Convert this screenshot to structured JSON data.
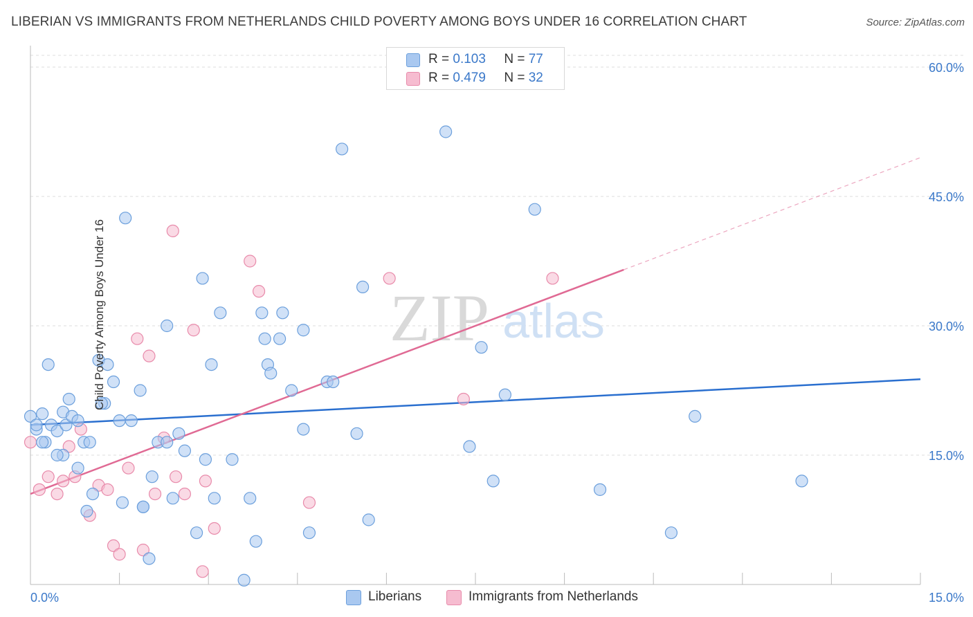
{
  "title": "LIBERIAN VS IMMIGRANTS FROM NETHERLANDS CHILD POVERTY AMONG BOYS UNDER 16 CORRELATION CHART",
  "source": "Source: ZipAtlas.com",
  "watermark": {
    "zip": "ZIP",
    "atlas": "atlas"
  },
  "colors": {
    "blue_fill": "#a9c8f0",
    "blue_stroke": "#6b9fdc",
    "blue_line": "#2a6fcf",
    "pink_fill": "#f6bcd0",
    "pink_stroke": "#e88aaa",
    "pink_line": "#e06a94",
    "axis_label": "#3a78c9",
    "grid": "#dddddd"
  },
  "legend": {
    "rows": [
      {
        "r_label": "R =",
        "r_value": "0.103",
        "n_label": "N =",
        "n_value": "77"
      },
      {
        "r_label": "R =",
        "r_value": "0.479",
        "n_label": "N =",
        "n_value": "32"
      }
    ]
  },
  "bottom_legend": [
    "Liberians",
    "Immigrants from Netherlands"
  ],
  "chart_data": {
    "type": "scatter",
    "title": "LIBERIAN VS IMMIGRANTS FROM NETHERLANDS CHILD POVERTY AMONG BOYS UNDER 16 CORRELATION CHART",
    "xlabel": "",
    "ylabel": "Child Poverty Among Boys Under 16",
    "xlim": [
      0,
      15
    ],
    "ylim": [
      0,
      60
    ],
    "x_tick_labels": [
      "0.0%",
      "15.0%"
    ],
    "y_ticks": [
      15,
      30,
      45,
      60
    ],
    "y_tick_labels": [
      "15.0%",
      "30.0%",
      "45.0%",
      "60.0%"
    ],
    "grid": true,
    "legend_position": "top-center",
    "series": [
      {
        "name": "Liberians",
        "color": "#6b9fdc",
        "trend": {
          "x": [
            0,
            15
          ],
          "y": [
            18.5,
            23.8
          ],
          "solid_to": 15
        },
        "points": [
          [
            0.0,
            19.5
          ],
          [
            0.1,
            18.0
          ],
          [
            0.2,
            19.8
          ],
          [
            0.3,
            25.5
          ],
          [
            0.35,
            18.5
          ],
          [
            0.45,
            17.8
          ],
          [
            0.55,
            20.0
          ],
          [
            0.6,
            18.5
          ],
          [
            0.65,
            21.5
          ],
          [
            0.7,
            19.5
          ],
          [
            0.8,
            19.0
          ],
          [
            0.9,
            16.5
          ],
          [
            1.0,
            16.5
          ],
          [
            1.05,
            10.5
          ],
          [
            0.95,
            8.5
          ],
          [
            0.8,
            13.5
          ],
          [
            0.55,
            15.0
          ],
          [
            0.45,
            15.0
          ],
          [
            0.25,
            16.5
          ],
          [
            0.1,
            18.5
          ],
          [
            1.15,
            26.0
          ],
          [
            1.25,
            21.0
          ],
          [
            1.3,
            25.5
          ],
          [
            1.4,
            23.5
          ],
          [
            1.5,
            19.0
          ],
          [
            1.55,
            9.5
          ],
          [
            1.6,
            42.5
          ],
          [
            1.7,
            19.0
          ],
          [
            1.85,
            22.5
          ],
          [
            1.9,
            9.0
          ],
          [
            2.0,
            3.0
          ],
          [
            2.05,
            12.5
          ],
          [
            2.15,
            16.5
          ],
          [
            2.3,
            16.5
          ],
          [
            2.3,
            30.0
          ],
          [
            2.4,
            10.0
          ],
          [
            2.5,
            17.5
          ],
          [
            2.6,
            15.5
          ],
          [
            2.8,
            6.0
          ],
          [
            2.9,
            35.5
          ],
          [
            2.95,
            14.5
          ],
          [
            3.05,
            25.5
          ],
          [
            3.1,
            10.0
          ],
          [
            3.2,
            31.5
          ],
          [
            3.4,
            14.5
          ],
          [
            3.6,
            0.5
          ],
          [
            3.7,
            10.0
          ],
          [
            3.8,
            5.0
          ],
          [
            3.9,
            31.5
          ],
          [
            3.95,
            28.5
          ],
          [
            4.0,
            25.5
          ],
          [
            4.05,
            24.5
          ],
          [
            4.2,
            28.5
          ],
          [
            4.25,
            31.5
          ],
          [
            4.4,
            22.5
          ],
          [
            4.6,
            18.0
          ],
          [
            4.6,
            29.5
          ],
          [
            4.7,
            6.0
          ],
          [
            5.0,
            23.5
          ],
          [
            5.1,
            23.5
          ],
          [
            5.25,
            50.5
          ],
          [
            5.5,
            17.5
          ],
          [
            5.6,
            34.5
          ],
          [
            5.7,
            7.5
          ],
          [
            7.0,
            52.5
          ],
          [
            7.4,
            16.0
          ],
          [
            7.6,
            27.5
          ],
          [
            7.8,
            12.0
          ],
          [
            8.0,
            22.0
          ],
          [
            8.5,
            43.5
          ],
          [
            9.6,
            11.0
          ],
          [
            10.8,
            6.0
          ],
          [
            11.2,
            19.5
          ],
          [
            13.0,
            12.0
          ],
          [
            1.9,
            9.0
          ],
          [
            1.2,
            21.0
          ],
          [
            0.2,
            16.5
          ]
        ]
      },
      {
        "name": "Immigrants from Netherlands",
        "color": "#e88aaa",
        "trend": {
          "x": [
            0,
            15
          ],
          "y": [
            10.5,
            49.5
          ],
          "solid_to": 10.0
        },
        "points": [
          [
            0.0,
            16.5
          ],
          [
            0.15,
            11.0
          ],
          [
            0.3,
            12.5
          ],
          [
            0.45,
            10.5
          ],
          [
            0.55,
            12.0
          ],
          [
            0.65,
            16.0
          ],
          [
            0.75,
            12.5
          ],
          [
            0.85,
            18.0
          ],
          [
            1.0,
            8.0
          ],
          [
            1.15,
            11.5
          ],
          [
            1.3,
            11.0
          ],
          [
            1.4,
            4.5
          ],
          [
            1.5,
            3.5
          ],
          [
            1.65,
            13.5
          ],
          [
            1.8,
            28.5
          ],
          [
            1.9,
            4.0
          ],
          [
            2.0,
            26.5
          ],
          [
            2.1,
            10.5
          ],
          [
            2.25,
            17.0
          ],
          [
            2.4,
            41.0
          ],
          [
            2.45,
            12.5
          ],
          [
            2.6,
            10.5
          ],
          [
            2.75,
            29.5
          ],
          [
            2.9,
            1.5
          ],
          [
            2.95,
            12.0
          ],
          [
            3.1,
            6.5
          ],
          [
            3.7,
            37.5
          ],
          [
            3.85,
            34.0
          ],
          [
            4.7,
            9.5
          ],
          [
            6.05,
            35.5
          ],
          [
            7.3,
            21.5
          ],
          [
            8.8,
            35.5
          ]
        ]
      }
    ]
  }
}
